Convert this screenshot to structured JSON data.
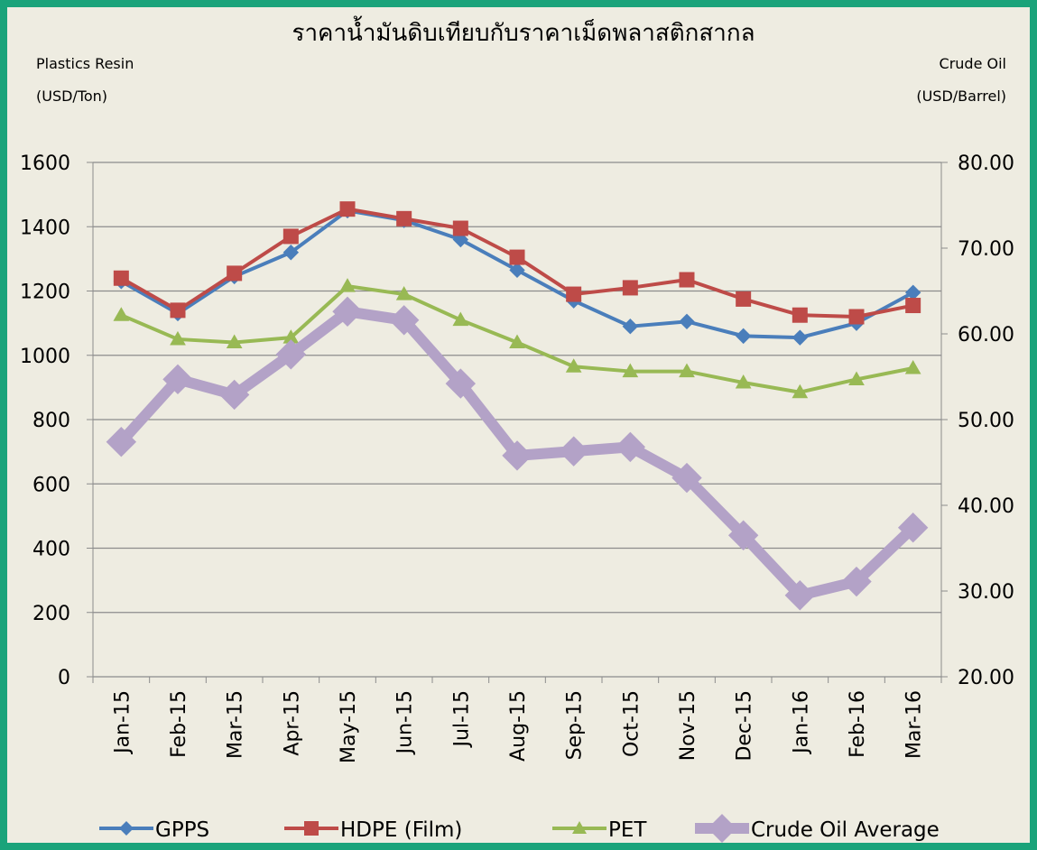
{
  "chart_data": {
    "type": "line",
    "title": "ราคาน้ำมันดิบเทียบกับราคาเม็ดพลาสติกสากล",
    "y_label": [
      "Plastics Resin",
      "(USD/Ton)"
    ],
    "y2_label": [
      "Crude Oil",
      "(USD/Barrel)"
    ],
    "categories": [
      "Jan-15",
      "Feb-15",
      "Mar-15",
      "Apr-15",
      "May-15",
      "Jun-15",
      "Jul-15",
      "Aug-15",
      "Sep-15",
      "Oct-15",
      "Nov-15",
      "Dec-15",
      "Jan-16",
      "Feb-16",
      "Mar-16"
    ],
    "series": [
      {
        "name": "GPPS",
        "color": "#4a7ebb",
        "marker": "diamond",
        "values": [
          1230,
          1130,
          1245,
          1320,
          1450,
          1420,
          1360,
          1265,
          1170,
          1090,
          1105,
          1060,
          1055,
          1100,
          1195
        ]
      },
      {
        "name": "HDPE (Film)",
        "color": "#be4b48",
        "marker": "square",
        "values": [
          1240,
          1140,
          1255,
          1370,
          1455,
          1425,
          1395,
          1305,
          1190,
          1210,
          1235,
          1175,
          1125,
          1120,
          1155
        ]
      },
      {
        "name": "PET",
        "color": "#98b954",
        "marker": "triangle",
        "values": [
          1125,
          1050,
          1040,
          1055,
          1215,
          1190,
          1110,
          1040,
          965,
          950,
          950,
          915,
          885,
          925,
          960
        ]
      },
      {
        "name": "Crude Oil Average",
        "color": "#b3a2c7",
        "marker": "bigdiamond",
        "axis": "y2",
        "values": [
          47.4,
          54.7,
          52.9,
          57.6,
          62.6,
          61.6,
          54.2,
          45.8,
          46.3,
          46.8,
          43.2,
          36.5,
          29.5,
          31.1,
          37.4
        ]
      }
    ],
    "ylim": [
      0,
      1600
    ],
    "yticks": [
      0,
      200,
      400,
      600,
      800,
      1000,
      1200,
      1400,
      1600
    ],
    "y2lim": [
      20,
      80
    ],
    "y2ticks": [
      {
        "value": 20,
        "label": "20.00"
      },
      {
        "value": 30,
        "label": "30.00"
      },
      {
        "value": 40,
        "label": "40.00"
      },
      {
        "value": 50,
        "label": "50.00"
      },
      {
        "value": 60,
        "label": "60.00"
      },
      {
        "value": 70,
        "label": "70.00"
      },
      {
        "value": 80,
        "label": "80.00"
      }
    ],
    "grid": true
  }
}
